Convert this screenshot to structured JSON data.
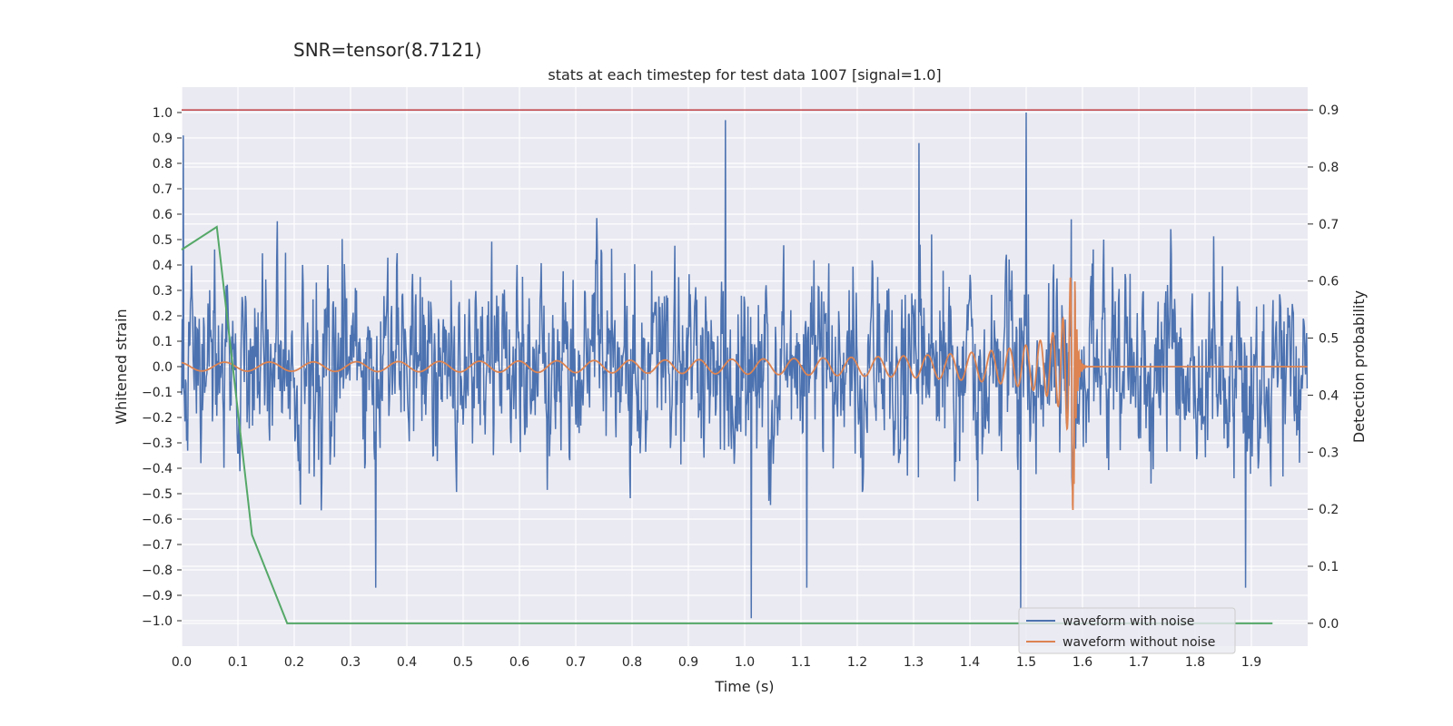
{
  "chart_data": {
    "type": "line",
    "suptitle": "SNR=tensor(8.7121)",
    "title": "stats at each timestep for test data 1007 [signal=1.0]",
    "xlabel": "Time (s)",
    "ylabel_left": "Whitened strain",
    "ylabel_right": "Detection probability",
    "xlim": [
      0.0,
      2.0
    ],
    "ylim_left": [
      -1.1,
      1.1
    ],
    "ylim_right": [
      -0.04,
      0.94
    ],
    "x_ticks": [
      "0.0",
      "0.1",
      "0.2",
      "0.3",
      "0.4",
      "0.5",
      "0.6",
      "0.7",
      "0.8",
      "0.9",
      "1.0",
      "1.1",
      "1.2",
      "1.3",
      "1.4",
      "1.5",
      "1.6",
      "1.7",
      "1.8",
      "1.9"
    ],
    "y_ticks_left": [
      "1.0",
      "0.9",
      "0.8",
      "0.7",
      "0.6",
      "0.5",
      "0.4",
      "0.3",
      "0.2",
      "0.1",
      "0.0",
      "−0.1",
      "−0.2",
      "−0.3",
      "−0.4",
      "−0.5",
      "−0.6",
      "−0.7",
      "−0.8",
      "−0.9",
      "−1.0"
    ],
    "y_ticks_right": [
      "0.9",
      "0.8",
      "0.7",
      "0.6",
      "0.5",
      "0.4",
      "0.3",
      "0.2",
      "0.1",
      "0.0"
    ],
    "threshold_line": {
      "axis": "right",
      "value": 0.9,
      "color": "#c44e52"
    },
    "series": [
      {
        "name": "waveform with noise",
        "axis": "left",
        "color": "#4c72b0",
        "kind": "noise",
        "n_samples": 2048,
        "amplitude_std": 0.3,
        "peak_max": 1.0,
        "peak_min": -0.99
      },
      {
        "name": "waveform without noise",
        "axis": "left",
        "color": "#dd8452",
        "kind": "chirp",
        "merger_time": 1.585,
        "peak_amplitude": 0.57,
        "early_amplitude": 0.015,
        "ringdown_end": 1.6
      },
      {
        "name": "detection probability",
        "axis": "right",
        "color": "#55a868",
        "x": [
          0.0,
          0.0625,
          0.125,
          0.1875,
          0.25,
          0.5,
          1.0,
          1.5,
          1.9375
        ],
        "y": [
          0.655,
          0.695,
          0.155,
          0.0,
          0.0,
          0.0,
          0.0,
          0.0,
          0.0
        ]
      }
    ],
    "legend": {
      "location": "lower-right",
      "entries": [
        "waveform with noise",
        "waveform without noise"
      ]
    }
  }
}
